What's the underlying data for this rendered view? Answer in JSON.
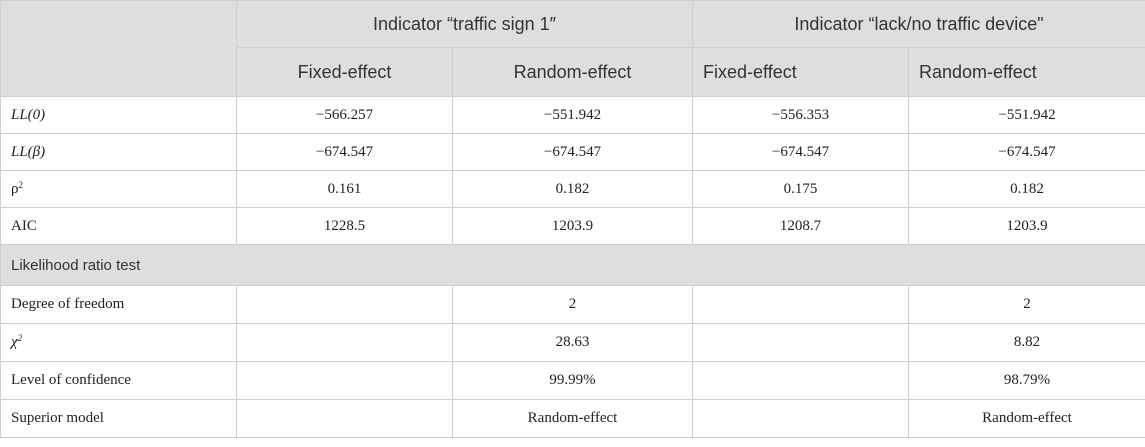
{
  "header": {
    "group1": "Indicator “traffic sign 1″",
    "group2": "Indicator “lack/no traffic device\"",
    "sub": [
      "Fixed-effect",
      "Random-effect",
      "Fixed-effect",
      "Random-effect"
    ]
  },
  "rows": [
    {
      "label": "LL(0)",
      "values": [
        "−566.257",
        "−551.942",
        "−556.353",
        "−551.942"
      ]
    },
    {
      "label": "LL(β)",
      "values": [
        "−674.547",
        "−674.547",
        "−674.547",
        "−674.547"
      ]
    },
    {
      "label": "ρ",
      "label_sup": "2",
      "values": [
        "0.161",
        "0.182",
        "0.175",
        "0.182"
      ]
    },
    {
      "label": "AIC",
      "values": [
        "1228.5",
        "1203.9",
        "1208.7",
        "1203.9"
      ]
    }
  ],
  "section": "Likelihood ratio test",
  "lr_rows": [
    {
      "label": "Degree of freedom",
      "values": [
        "",
        "2",
        "",
        "2"
      ]
    },
    {
      "label": "χ",
      "label_sup": "2",
      "values": [
        "",
        "28.63",
        "",
        "8.82"
      ]
    },
    {
      "label": "Level of confidence",
      "values": [
        "",
        "99.99%",
        "",
        "98.79%"
      ]
    },
    {
      "label": "Superior model",
      "values": [
        "",
        "Random-effect",
        "",
        "Random-effect"
      ]
    }
  ]
}
